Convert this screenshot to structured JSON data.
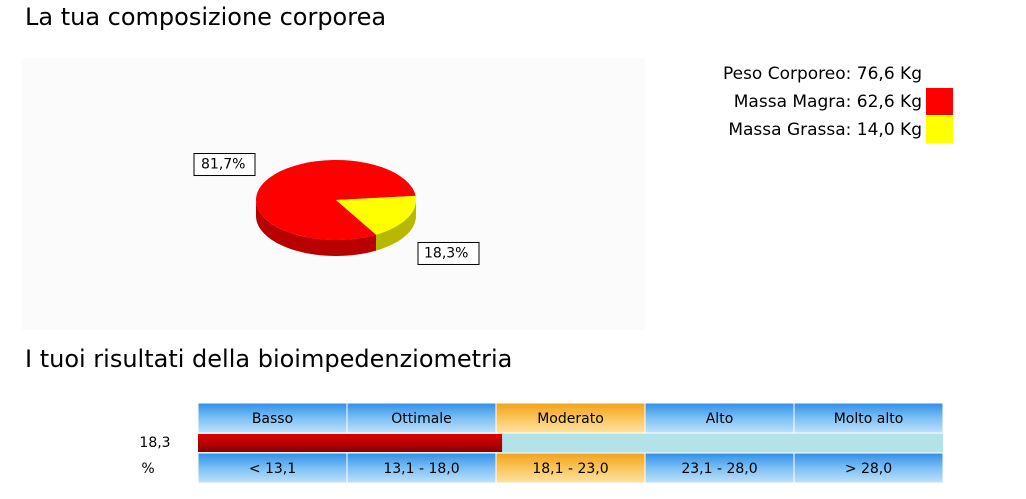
{
  "header": {
    "title": "La tua composizione corporea"
  },
  "chart_data": {
    "type": "pie",
    "values": [
      81.7,
      18.3
    ],
    "value_labels": [
      "81,7%",
      "18,3%"
    ],
    "colors": [
      "#ff0000",
      "#ffff00"
    ]
  },
  "legend": {
    "total": "Peso Corporeo: 76,6 Kg",
    "items": [
      "Massa Magra: 62,6 Kg",
      "Massa Grassa: 14,0 Kg"
    ]
  },
  "results": {
    "title": "I tuoi risultati della bioimpedenziometria",
    "value": 18.3,
    "value_label": "18,3",
    "unit": "%",
    "bands": [
      {
        "name": "Basso",
        "label": "< 13,1",
        "max": 13.1
      },
      {
        "name": "Ottimale",
        "label": "13,1 - 18,0",
        "min": 13.1,
        "max": 18.0
      },
      {
        "name": "Moderato",
        "label": "18,1 - 23,0",
        "min": 18.1,
        "max": 23.0
      },
      {
        "name": "Alto",
        "label": "23,1 - 28,0",
        "min": 23.1,
        "max": 28.0
      },
      {
        "name": "Molto alto",
        "label": "> 28,0",
        "min": 28.0
      }
    ]
  }
}
